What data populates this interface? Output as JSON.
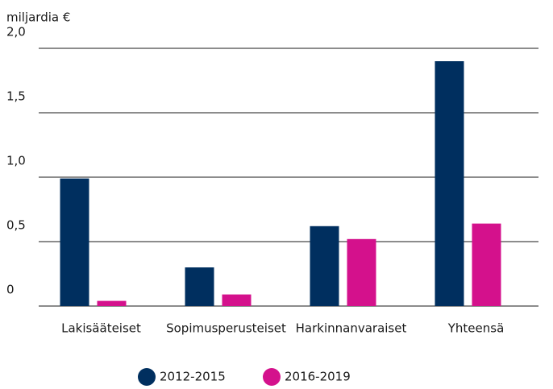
{
  "chart_data": {
    "type": "bar",
    "y_label": "miljardia €",
    "categories": [
      "Lakisääteiset",
      "Sopimusperusteiset",
      "Harkinnanvaraiset",
      "Yhteensä"
    ],
    "series": [
      {
        "name": "2012-2015",
        "color": "#002f5f",
        "values": [
          0.99,
          0.3,
          0.62,
          1.9
        ]
      },
      {
        "name": "2016-2019",
        "color": "#d4118c",
        "values": [
          0.04,
          0.09,
          0.52,
          0.64
        ]
      }
    ],
    "ylim": [
      0,
      2
    ],
    "yticks": [
      0,
      {
        "value": 0.5,
        "label": "0,5"
      },
      {
        "value": 1,
        "label": "1,0"
      },
      {
        "value": 1.5,
        "label": "1,5"
      },
      {
        "value": 2,
        "label": "2,0"
      }
    ],
    "grid": true,
    "legend": "bottom"
  }
}
